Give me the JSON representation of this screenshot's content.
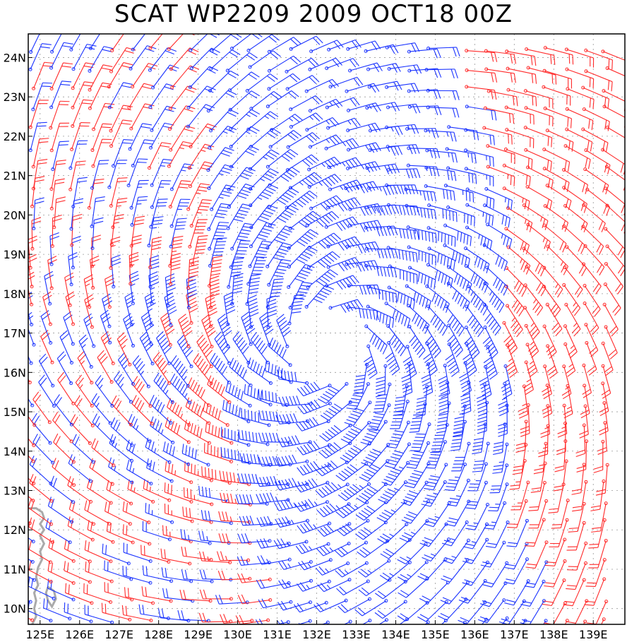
{
  "title": "SCAT WP2209 2009 OCT18 00Z",
  "chart_data": {
    "type": "wind-barb-map",
    "title": "SCAT WP2209 2009 OCT18 00Z",
    "xlabel": "",
    "ylabel": "",
    "lon_range": [
      124.7,
      139.8
    ],
    "lat_range": [
      9.6,
      24.6
    ],
    "x_ticks": [
      {
        "value": 125,
        "label": "125E"
      },
      {
        "value": 126,
        "label": "126E"
      },
      {
        "value": 127,
        "label": "127E"
      },
      {
        "value": 128,
        "label": "128E"
      },
      {
        "value": 129,
        "label": "129E"
      },
      {
        "value": 130,
        "label": "130E"
      },
      {
        "value": 131,
        "label": "131E"
      },
      {
        "value": 132,
        "label": "132E"
      },
      {
        "value": 133,
        "label": "133E"
      },
      {
        "value": 134,
        "label": "134E"
      },
      {
        "value": 135,
        "label": "135E"
      },
      {
        "value": 136,
        "label": "136E"
      },
      {
        "value": 137,
        "label": "137E"
      },
      {
        "value": 138,
        "label": "138E"
      },
      {
        "value": 139,
        "label": "139E"
      }
    ],
    "y_ticks": [
      {
        "value": 10,
        "label": "10N"
      },
      {
        "value": 11,
        "label": "11N"
      },
      {
        "value": 12,
        "label": "12N"
      },
      {
        "value": 13,
        "label": "13N"
      },
      {
        "value": 14,
        "label": "14N"
      },
      {
        "value": 15,
        "label": "15N"
      },
      {
        "value": 16,
        "label": "16N"
      },
      {
        "value": 17,
        "label": "17N"
      },
      {
        "value": 18,
        "label": "18N"
      },
      {
        "value": 19,
        "label": "19N"
      },
      {
        "value": 20,
        "label": "20N"
      },
      {
        "value": 21,
        "label": "21N"
      },
      {
        "value": 22,
        "label": "22N"
      },
      {
        "value": 23,
        "label": "23N"
      },
      {
        "value": 24,
        "label": "24N"
      }
    ],
    "grid": true,
    "storm_center": {
      "lon": 132.3,
      "lat": 16.7
    },
    "swath_edge_lon_west": [
      [
        24.2,
        128.3
      ],
      [
        21.0,
        128.9
      ],
      [
        18.0,
        129.3
      ],
      [
        16.0,
        129.6
      ],
      [
        14.5,
        130.0
      ],
      [
        12.0,
        130.6
      ],
      [
        10.2,
        130.9
      ]
    ],
    "swath_edge_lon_east": [
      [
        24.2,
        135.4
      ],
      [
        22.0,
        136.2
      ],
      [
        20.0,
        136.5
      ],
      [
        18.0,
        136.6
      ],
      [
        16.0,
        137.0
      ],
      [
        14.0,
        137.2
      ],
      [
        12.0,
        137.4
      ],
      [
        11.0,
        138.0
      ]
    ],
    "series": [
      {
        "name": "in-swath wind barbs",
        "color": "#1a33ff"
      },
      {
        "name": "rain-flagged wind barbs",
        "color": "#ff2a2a"
      }
    ],
    "barb_spacing_deg": 0.5,
    "coastline_color": "#aaaaaa"
  }
}
